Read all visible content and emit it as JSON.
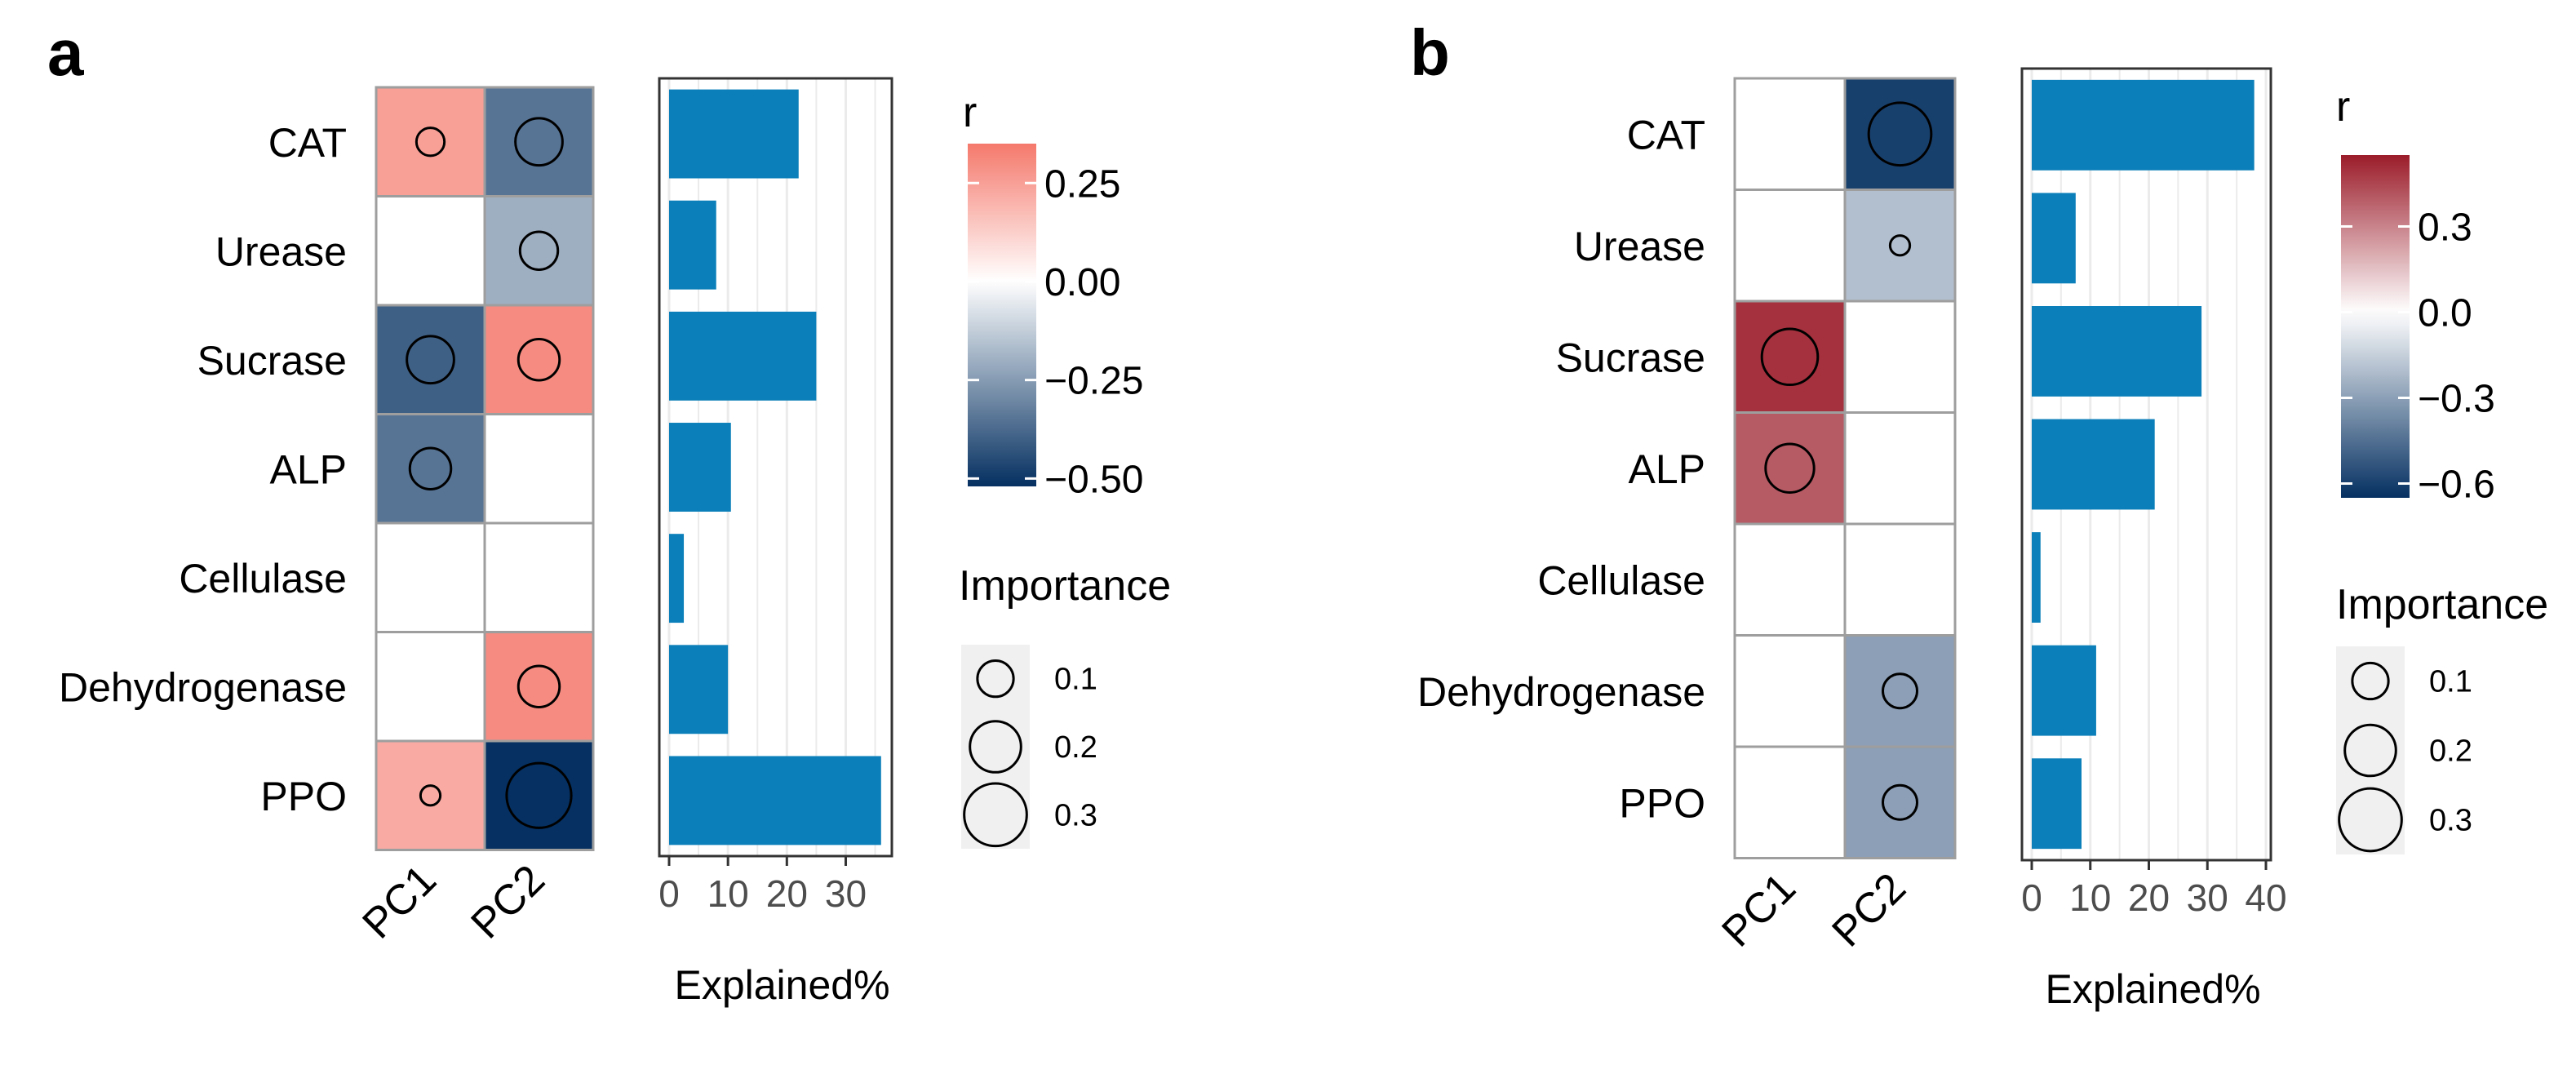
{
  "chart_data": [
    {
      "panel": "a",
      "type": "heatmap+bar",
      "rows": [
        "CAT",
        "Urease",
        "Sucrase",
        "ALP",
        "Cellulase",
        "Dehydrogenase",
        "PPO"
      ],
      "columns": [
        "PC1",
        "PC2"
      ],
      "r": [
        [
          0.25,
          -0.35
        ],
        [
          0.0,
          -0.2
        ],
        [
          -0.4,
          0.3
        ],
        [
          -0.35,
          0.0
        ],
        [
          0.0,
          0.0
        ],
        [
          0.0,
          0.3
        ],
        [
          0.22,
          -0.55
        ]
      ],
      "importance": [
        [
          0.06,
          0.17
        ],
        [
          null,
          0.11
        ],
        [
          0.17,
          0.13
        ],
        [
          0.13,
          null
        ],
        [
          null,
          null
        ],
        [
          null,
          0.13
        ],
        [
          0.03,
          0.32
        ]
      ],
      "explained_percent": [
        22,
        8,
        25,
        10.5,
        2.5,
        10,
        36
      ],
      "xlabel": "Explained%",
      "x_ticks": [
        0,
        10,
        20,
        30
      ],
      "xlim": [
        0,
        37
      ],
      "colorbar": {
        "title": "r",
        "ticks": [
          0.25,
          0.0,
          -0.25,
          -0.5
        ],
        "tick_labels": [
          "0.25",
          "0.00",
          "−0.25",
          "−0.50"
        ],
        "range": [
          -0.52,
          0.35
        ]
      },
      "size_legend": {
        "title": "Importance",
        "values": [
          0.1,
          0.2,
          0.3
        ],
        "labels": [
          "0.1",
          "0.2",
          "0.3"
        ]
      }
    },
    {
      "panel": "b",
      "type": "heatmap+bar",
      "rows": [
        "CAT",
        "Urease",
        "Sucrase",
        "ALP",
        "Cellulase",
        "Dehydrogenase",
        "PPO"
      ],
      "columns": [
        "PC1",
        "PC2"
      ],
      "r": [
        [
          0.0,
          -0.6
        ],
        [
          0.0,
          -0.2
        ],
        [
          0.5,
          0.0
        ],
        [
          0.4,
          0.0
        ],
        [
          0.0,
          0.0
        ],
        [
          0.0,
          -0.3
        ],
        [
          0.0,
          -0.3
        ]
      ],
      "importance": [
        [
          null,
          0.3
        ],
        [
          null,
          0.03
        ],
        [
          0.24,
          null
        ],
        [
          0.18,
          null
        ],
        [
          null,
          null
        ],
        [
          null,
          0.09
        ],
        [
          null,
          0.09
        ]
      ],
      "explained_percent": [
        38,
        7.5,
        29,
        21,
        1.5,
        11,
        8.5
      ],
      "xlabel": "Explained%",
      "x_ticks": [
        0,
        10,
        20,
        30,
        40
      ],
      "xlim": [
        0,
        40
      ],
      "colorbar": {
        "title": "r",
        "ticks": [
          0.3,
          0.0,
          -0.3,
          -0.6
        ],
        "tick_labels": [
          "0.3",
          "0.0",
          "−0.3",
          "−0.6"
        ],
        "range": [
          -0.65,
          0.55
        ]
      },
      "size_legend": {
        "title": "Importance",
        "values": [
          0.1,
          0.2,
          0.3
        ],
        "labels": [
          "0.1",
          "0.2",
          "0.3"
        ]
      }
    }
  ],
  "colors": {
    "bar": "#0a7fb9",
    "positive": "#f5796c",
    "neutral": "#ffffff",
    "negative": "#053061",
    "positive_b": "#9b1c2a",
    "cell_border": "#9e9e9e",
    "grid": "#ebebeb",
    "size_key_bg": "#f0f0f0"
  }
}
